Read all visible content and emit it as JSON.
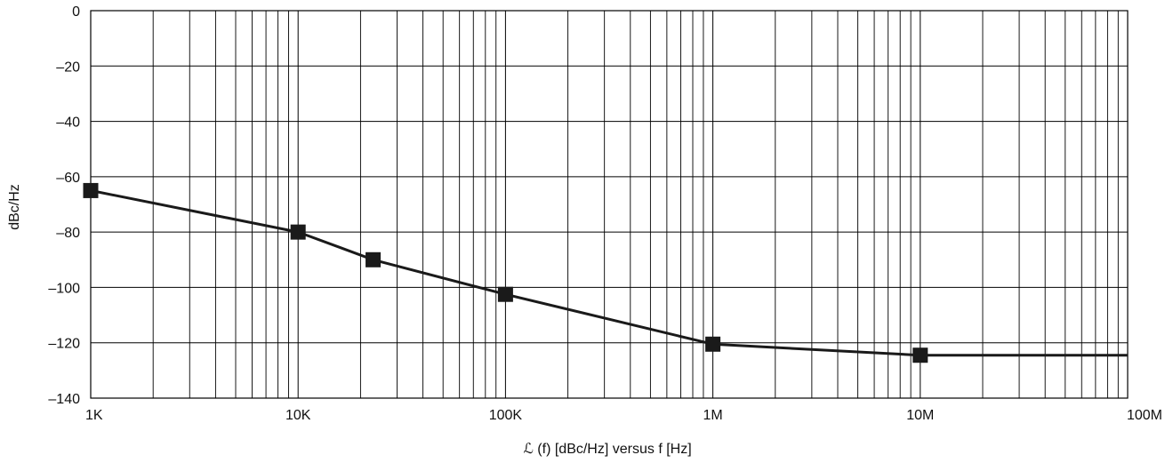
{
  "chart_data": {
    "type": "line",
    "title": "",
    "xlabel": "ℒ (f) [dBc/Hz] versus f [Hz]",
    "ylabel": "dBc/Hz",
    "x_scale": "log",
    "xlim": [
      1000,
      100000000
    ],
    "ylim": [
      -140,
      0
    ],
    "grid": true,
    "x_ticks": [
      1000,
      10000,
      100000,
      1000000,
      10000000,
      100000000
    ],
    "x_tick_labels": [
      "1K",
      "10K",
      "100K",
      "1M",
      "10M",
      "100M"
    ],
    "y_ticks": [
      0,
      -20,
      -40,
      -60,
      -80,
      -100,
      -120,
      -140
    ],
    "y_tick_labels": [
      "0",
      "–20",
      "–40",
      "–60",
      "–80",
      "–100",
      "–120",
      "–140"
    ],
    "series": [
      {
        "x": [
          1000,
          10000,
          23000,
          100000,
          1000000,
          10000000,
          100000000
        ],
        "y": [
          -65,
          -80,
          -90,
          -102.5,
          -120.5,
          -124.5,
          -124.5
        ],
        "markers": [
          true,
          true,
          true,
          true,
          true,
          true,
          false
        ],
        "marker": "square",
        "color": "#1a1a1a"
      }
    ]
  }
}
